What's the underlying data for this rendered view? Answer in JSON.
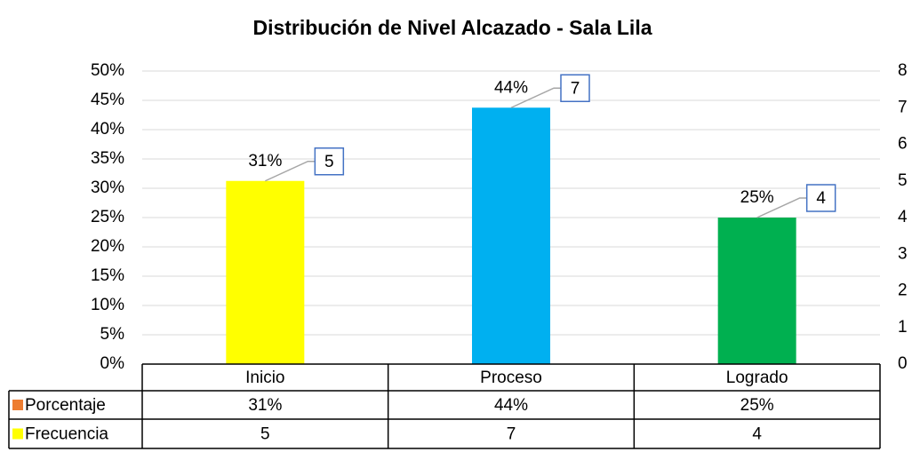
{
  "chart_data": {
    "type": "bar",
    "title": "Distribución de Nivel Alcazado - Sala Lila",
    "categories": [
      "Inicio",
      "Proceso",
      "Logrado"
    ],
    "bar_colors": [
      "#ffff00",
      "#00b0f0",
      "#00b050"
    ],
    "series": [
      {
        "name": "Porcentaje",
        "color": "#ed7d31",
        "values": [
          31.25,
          43.75,
          25
        ],
        "value_labels": [
          "31%",
          "44%",
          "25%"
        ]
      },
      {
        "name": "Frecuencia",
        "color": "#ffff00",
        "values": [
          5,
          7,
          4
        ],
        "axis": "y2"
      }
    ],
    "ylim": [
      0,
      50
    ],
    "yticks": [
      {
        "value": 0,
        "label": "0%"
      },
      {
        "value": 5,
        "label": "5%"
      },
      {
        "value": 10,
        "label": "10%"
      },
      {
        "value": 15,
        "label": "15%"
      },
      {
        "value": 20,
        "label": "20%"
      },
      {
        "value": 25,
        "label": "25%"
      },
      {
        "value": 30,
        "label": "30%"
      },
      {
        "value": 35,
        "label": "35%"
      },
      {
        "value": 40,
        "label": "40%"
      },
      {
        "value": 45,
        "label": "45%"
      },
      {
        "value": 50,
        "label": "50%"
      }
    ],
    "y2lim": [
      0,
      8
    ],
    "y2ticks": [
      0,
      1,
      2,
      3,
      4,
      5,
      6,
      7,
      8
    ],
    "grid": true
  }
}
